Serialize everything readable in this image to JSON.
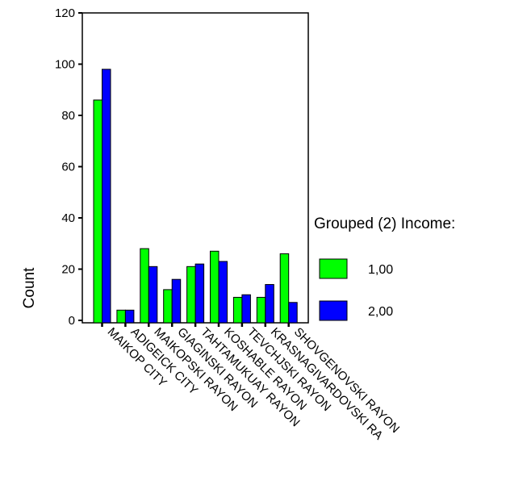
{
  "chart_data": {
    "type": "bar",
    "title": "",
    "xlabel": "",
    "ylabel": "Count",
    "ylim": [
      0,
      120
    ],
    "yticks": [
      0,
      20,
      40,
      60,
      80,
      100,
      120
    ],
    "grid": false,
    "categories": [
      "MAIKOP CITY",
      "ADIGEICK CITY",
      "MAIKOPSKI RAYON",
      "GIAGINSKI RAYON",
      "TAHTAMUKUAY RAYON",
      "KOSHABLE RAYON",
      "TEVCHJSKI RAYON",
      "KRASNAGIVARDOVSKI RA",
      "SHOVGENOVSKI RAYON"
    ],
    "series": [
      {
        "name": "1,00",
        "color": "#00ff00",
        "values": [
          86,
          4,
          28,
          12,
          21,
          27,
          9,
          9,
          26
        ]
      },
      {
        "name": "2,00",
        "color": "#0000ff",
        "values": [
          98,
          4,
          21,
          16,
          22,
          23,
          10,
          14,
          7
        ]
      }
    ],
    "legend": {
      "title": "Grouped (2) Income:",
      "placement": "right"
    }
  }
}
